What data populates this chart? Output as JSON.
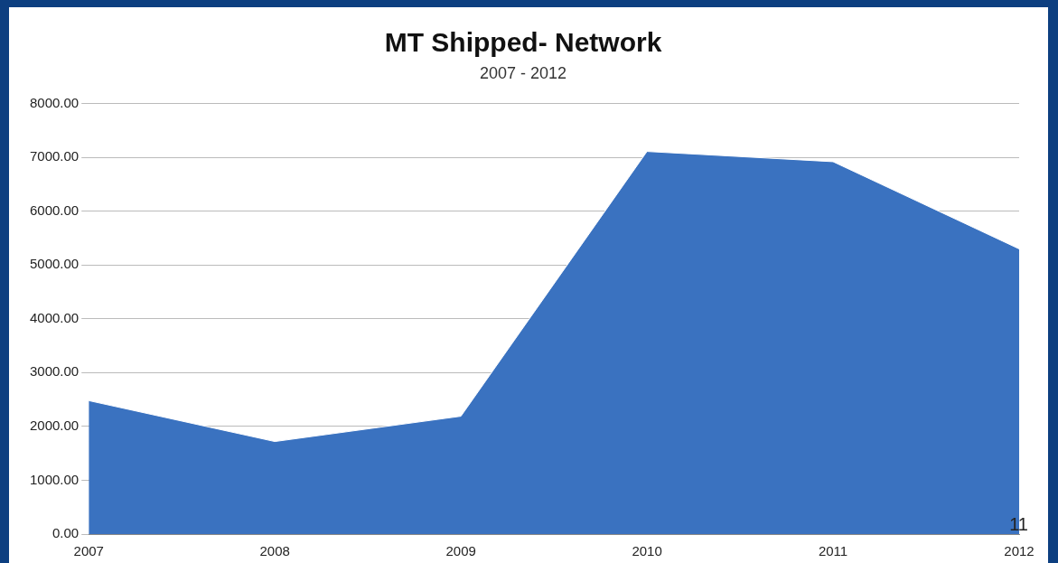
{
  "chart_data": {
    "type": "area",
    "title": "MT Shipped- Network",
    "subtitle": "2007 - 2012",
    "categories": [
      "2007",
      "2008",
      "2009",
      "2010",
      "2011",
      "2012"
    ],
    "series": [
      {
        "color": "#3a72c0",
        "values": [
          2480,
          1720,
          2190,
          7110,
          6920,
          5300
        ]
      }
    ],
    "ylim": [
      0,
      8000
    ],
    "yticks": [
      {
        "value": 0,
        "label": "0.00"
      },
      {
        "value": 1000,
        "label": "1000.00"
      },
      {
        "value": 2000,
        "label": "2000.00"
      },
      {
        "value": 3000,
        "label": "3000.00"
      },
      {
        "value": 4000,
        "label": "4000.00"
      },
      {
        "value": 5000,
        "label": "5000.00"
      },
      {
        "value": 6000,
        "label": "6000.00"
      },
      {
        "value": 7000,
        "label": "7000.00"
      },
      {
        "value": 8000,
        "label": "8000.00"
      }
    ],
    "grid": "y",
    "legend": false,
    "annotations": [
      "11"
    ]
  }
}
